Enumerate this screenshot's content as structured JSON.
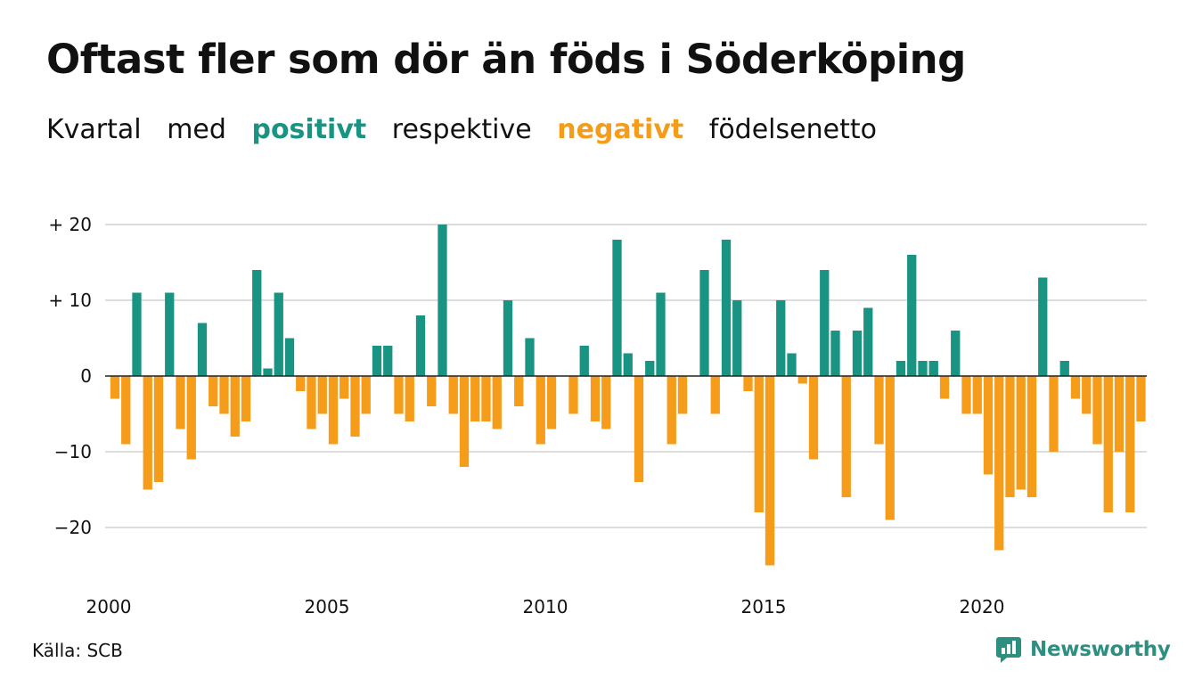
{
  "title": "Oftast fler som dör än föds i Söderköping",
  "subtitle": {
    "part1": "Kvartal",
    "part2": "med",
    "positive": "positivt",
    "part3": "respektive",
    "negative": "negativt",
    "part4": "födelsenetto"
  },
  "source": "Källa: SCB",
  "brand": "Newsworthy",
  "colors": {
    "positive": "#1a9482",
    "negative": "#f59c1a",
    "grid": "#dddddd",
    "baseline": "#222222",
    "brand": "#2d8f7f"
  },
  "chart_data": {
    "type": "bar",
    "start": {
      "year": 2000,
      "quarter": 1
    },
    "values": [
      -3,
      -9,
      11,
      -15,
      -14,
      11,
      -7,
      -11,
      7,
      -4,
      -5,
      -8,
      -6,
      14,
      1,
      11,
      5,
      -2,
      -7,
      -5,
      -9,
      -3,
      -8,
      -5,
      4,
      4,
      -5,
      -6,
      8,
      -4,
      20,
      -5,
      -12,
      -6,
      -6,
      -7,
      10,
      -4,
      5,
      -9,
      -7,
      0,
      -5,
      4,
      -6,
      -7,
      18,
      3,
      -14,
      2,
      11,
      -9,
      -5,
      0,
      14,
      -5,
      18,
      10,
      -2,
      -18,
      -25,
      10,
      3,
      -1,
      -11,
      14,
      6,
      -16,
      6,
      9,
      -9,
      -19,
      2,
      16,
      2,
      2,
      -3,
      6,
      -5,
      -5,
      -13,
      -23,
      -16,
      -15,
      -16,
      13,
      -10,
      2,
      -3,
      -5,
      -9,
      -18,
      -10,
      -18,
      -6
    ],
    "y_ticks": [
      {
        "value": 20,
        "label": "+ 20"
      },
      {
        "value": 10,
        "label": "+ 10"
      },
      {
        "value": 0,
        "label": "0"
      },
      {
        "value": -10,
        "label": "−10"
      },
      {
        "value": -20,
        "label": "−20"
      }
    ],
    "x_ticks": [
      "2000",
      "2005",
      "2010",
      "2015",
      "2020"
    ],
    "ylim": [
      -25,
      20
    ],
    "grid": true
  }
}
